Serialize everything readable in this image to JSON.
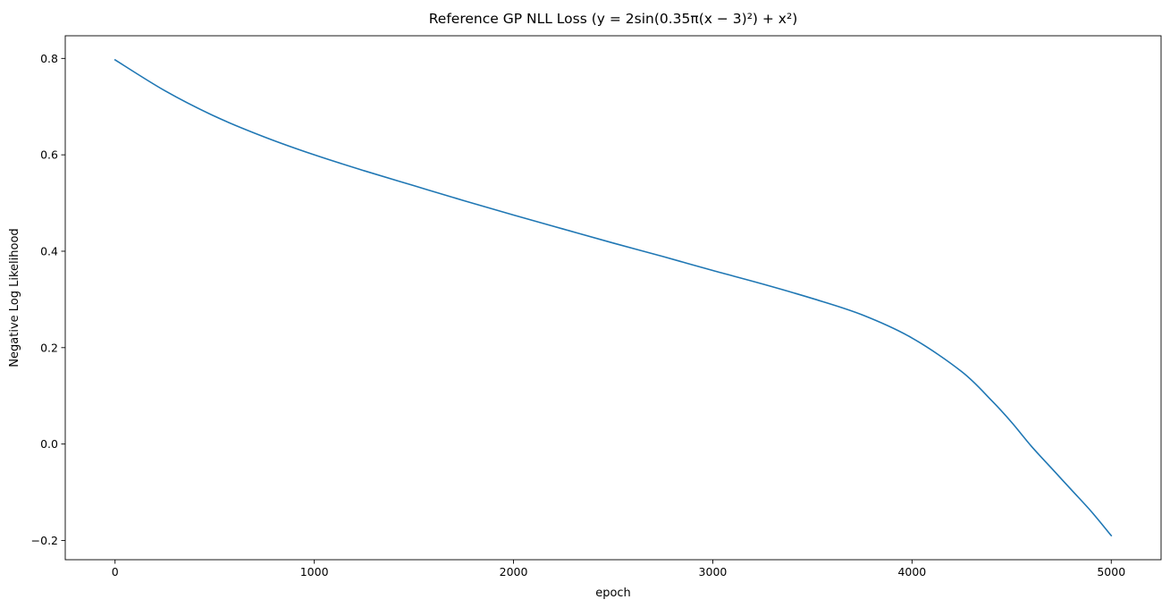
{
  "chart_data": {
    "type": "line",
    "title": "Reference GP NLL Loss (y = 2sin(0.35π(x − 3)²) + x²)",
    "xlabel": "epoch",
    "ylabel": "Negative Log Likelihood",
    "xlim": [
      -250,
      5250
    ],
    "ylim": [
      -0.24,
      0.847
    ],
    "xticks": [
      0,
      1000,
      2000,
      3000,
      4000,
      5000
    ],
    "xtick_labels": [
      "0",
      "1000",
      "2000",
      "3000",
      "4000",
      "5000"
    ],
    "yticks": [
      -0.2,
      0.0,
      0.2,
      0.4,
      0.6,
      0.8
    ],
    "ytick_labels": [
      "−0.2",
      "0.0",
      "0.2",
      "0.4",
      "0.6",
      "0.8"
    ],
    "grid": false,
    "legend": false,
    "series": [
      {
        "color": "#1f77b4",
        "x": [
          0,
          250,
          500,
          750,
          1000,
          1250,
          1500,
          1750,
          2000,
          2250,
          2500,
          2750,
          3000,
          3250,
          3500,
          3750,
          4000,
          4250,
          4400,
          4500,
          4600,
          4700,
          4800,
          4900,
          5000
        ],
        "y": [
          0.797,
          0.733,
          0.68,
          0.637,
          0.6,
          0.567,
          0.536,
          0.505,
          0.475,
          0.446,
          0.417,
          0.389,
          0.36,
          0.332,
          0.302,
          0.268,
          0.22,
          0.15,
          0.09,
          0.045,
          -0.005,
          -0.05,
          -0.095,
          -0.14,
          -0.19
        ]
      }
    ]
  }
}
